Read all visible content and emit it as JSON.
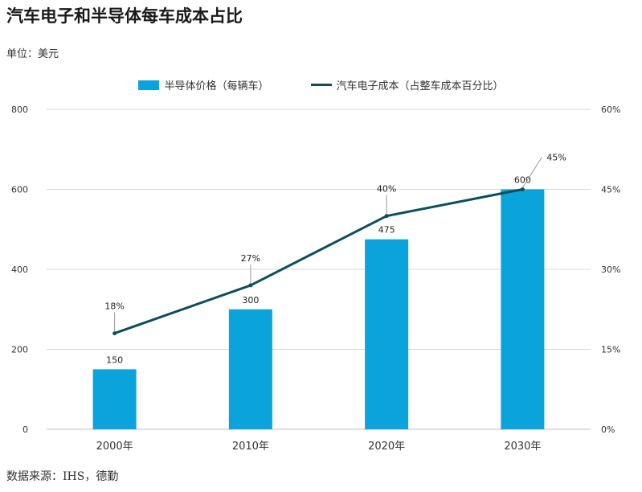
{
  "title": "汽车电子和半导体每车成本占比",
  "unit": "单位：美元",
  "source": "数据来源：IHS，德勤",
  "colors": {
    "bar": "#0aa3dc",
    "line": "#0e4d5e",
    "grid": "#d9d9d9",
    "leader": "#999999"
  },
  "chart_data": {
    "type": "bar",
    "categories": [
      "2000年",
      "2010年",
      "2020年",
      "2030年"
    ],
    "series": [
      {
        "name": "半导体价格（每辆车）",
        "type": "bar",
        "axis": "left",
        "values": [
          150,
          300,
          475,
          600
        ],
        "labels": [
          "150",
          "300",
          "475",
          "600"
        ]
      },
      {
        "name": "汽车电子成本（占整车成本百分比）",
        "type": "line",
        "axis": "right",
        "values": [
          18,
          27,
          40,
          45
        ],
        "labels": [
          "18%",
          "27%",
          "40%",
          "45%"
        ]
      }
    ],
    "ylim": [
      0,
      800
    ],
    "yticks": [
      "0",
      "200",
      "400",
      "600",
      "800"
    ],
    "y2lim": [
      0,
      60
    ],
    "y2ticks": [
      "0%",
      "15%",
      "30%",
      "45%",
      "60%"
    ],
    "grid": true,
    "legend": "top-center"
  }
}
